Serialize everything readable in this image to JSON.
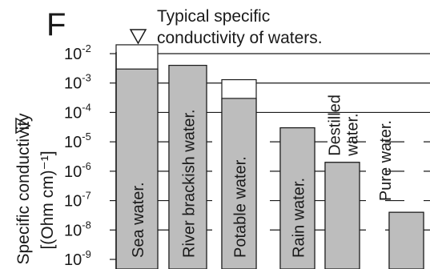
{
  "chart_data": {
    "type": "bar",
    "panel_label": "F",
    "title_lines": [
      "Typical specific",
      "conductivity of waters."
    ],
    "ylabel_lines": [
      "Specific conductivity",
      "[(Ohm cm)⁻¹]"
    ],
    "y_scale": "log",
    "ylim": [
      1e-09,
      0.01
    ],
    "ytick_labels": [
      {
        "base": "10",
        "exp": "-2",
        "value": 0.01
      },
      {
        "base": "10",
        "exp": "-3",
        "value": 0.001
      },
      {
        "base": "10",
        "exp": "-4",
        "value": 0.0001
      },
      {
        "base": "10",
        "exp": "-5",
        "value": 1e-05
      },
      {
        "base": "10",
        "exp": "-6",
        "value": 1e-06
      },
      {
        "base": "10",
        "exp": "-7",
        "value": 1e-07
      },
      {
        "base": "10",
        "exp": "-8",
        "value": 1e-08
      },
      {
        "base": "10",
        "exp": "-9",
        "value": 1e-09
      }
    ],
    "categories": [
      "Sea water.",
      "River brackish water.",
      "Potable water.",
      "Rain water.",
      "Destilled water.",
      "Pure water."
    ],
    "series": [
      {
        "values": [
          0.003,
          0.004,
          0.0003,
          3e-05,
          2e-06,
          4e-08
        ]
      },
      {
        "values": [
          0.02,
          0.004,
          0.0013,
          3e-05,
          2e-06,
          4e-08
        ]
      }
    ],
    "colors": {
      "low": "#bdbdbd",
      "high": "#ffffff",
      "stroke": "#1a1a1a"
    }
  }
}
